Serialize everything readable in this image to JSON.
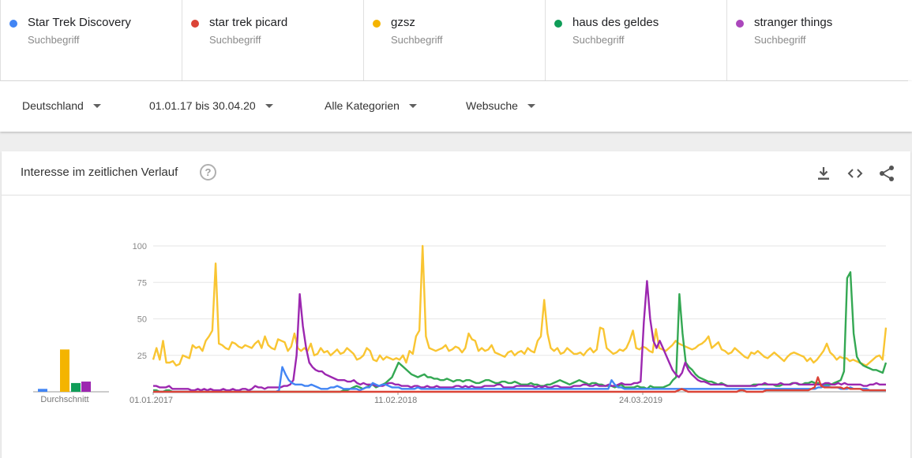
{
  "terms": [
    {
      "name": "Star Trek Discovery",
      "sub": "Suchbegriff",
      "color": "#4285f4"
    },
    {
      "name": "star trek picard",
      "sub": "Suchbegriff",
      "color": "#db4437"
    },
    {
      "name": "gzsz",
      "sub": "Suchbegriff",
      "color": "#f4b400"
    },
    {
      "name": "haus des geldes",
      "sub": "Suchbegriff",
      "color": "#0f9d58"
    },
    {
      "name": "stranger things",
      "sub": "Suchbegriff",
      "color": "#ab47bc"
    }
  ],
  "filters": {
    "region": "Deutschland",
    "time": "01.01.17 bis 30.04.20",
    "category": "Alle Kategorien",
    "search_type": "Websuche"
  },
  "card": {
    "title": "Interesse im zeitlichen Verlauf",
    "help_glyph": "?",
    "icons": [
      "download-icon",
      "embed-icon",
      "share-icon"
    ]
  },
  "chart_data": {
    "type": "line",
    "xlabels": [
      "01.01.2017",
      "11.02.2018",
      "24.03.2019"
    ],
    "yticks": [
      25,
      50,
      75,
      100
    ],
    "ylim": [
      0,
      100
    ],
    "average_label": "Durchschnitt",
    "averages": [
      {
        "term": "Star Trek Discovery",
        "value": 2,
        "color": "#4285f4"
      },
      {
        "term": "star trek picard",
        "value": 0,
        "color": "#db4437"
      },
      {
        "term": "gzsz",
        "value": 29,
        "color": "#f4b400"
      },
      {
        "term": "haus des geldes",
        "value": 6,
        "color": "#0f9d58"
      },
      {
        "term": "stranger things",
        "value": 7,
        "color": "#9c27b0"
      }
    ],
    "series": [
      {
        "name": "gzsz",
        "color": "#f9c532",
        "values": [
          22,
          30,
          22,
          35,
          20,
          20,
          21,
          18,
          19,
          25,
          24,
          23,
          32,
          30,
          31,
          28,
          35,
          38,
          42,
          88,
          33,
          32,
          30,
          29,
          34,
          33,
          31,
          30,
          32,
          31,
          30,
          33,
          35,
          30,
          38,
          32,
          30,
          29,
          36,
          35,
          34,
          28,
          31,
          40,
          30,
          28,
          30,
          28,
          33,
          25,
          26,
          30,
          27,
          28,
          25,
          27,
          29,
          26,
          27,
          30,
          28,
          26,
          22,
          23,
          25,
          30,
          28,
          22,
          21,
          25,
          22,
          24,
          23,
          22,
          23,
          22,
          25,
          20,
          28,
          26,
          38,
          42,
          100,
          38,
          30,
          29,
          28,
          29,
          30,
          32,
          28,
          29,
          31,
          30,
          27,
          30,
          40,
          36,
          35,
          28,
          30,
          28,
          29,
          32,
          27,
          26,
          25,
          24,
          27,
          28,
          25,
          27,
          28,
          26,
          30,
          28,
          27,
          35,
          38,
          63,
          40,
          30,
          28,
          30,
          26,
          27,
          30,
          28,
          26,
          26,
          27,
          25,
          28,
          30,
          27,
          29,
          44,
          43,
          30,
          28,
          26,
          27,
          29,
          28,
          30,
          35,
          42,
          30,
          29,
          31,
          30,
          28,
          27,
          43,
          30,
          29,
          28,
          30,
          32,
          35,
          33,
          32,
          31,
          30,
          29,
          30,
          32,
          33,
          35,
          38,
          30,
          32,
          34,
          29,
          28,
          26,
          27,
          30,
          28,
          26,
          24,
          23,
          27,
          26,
          28,
          26,
          24,
          23,
          25,
          27,
          25,
          23,
          21,
          24,
          26,
          27,
          26,
          25,
          24,
          21,
          23,
          20,
          22,
          25,
          28,
          33,
          27,
          25,
          22,
          24,
          23,
          23,
          21,
          22,
          21,
          20,
          19,
          18,
          20,
          22,
          24,
          25,
          22,
          44
        ]
      },
      {
        "name": "haus des geldes",
        "color": "#34a853",
        "values": [
          1,
          1,
          0,
          0,
          1,
          1,
          0,
          0,
          0,
          0,
          0,
          0,
          0,
          0,
          0,
          0,
          0,
          0,
          0,
          0,
          0,
          0,
          0,
          0,
          0,
          0,
          0,
          0,
          0,
          0,
          0,
          0,
          0,
          0,
          0,
          0,
          0,
          0,
          0,
          0,
          0,
          0,
          0,
          0,
          0,
          0,
          0,
          0,
          0,
          0,
          0,
          0,
          0,
          0,
          0,
          0,
          0,
          0,
          0,
          1,
          1,
          2,
          3,
          4,
          3,
          2,
          3,
          4,
          5,
          3,
          4,
          5,
          6,
          8,
          10,
          15,
          20,
          18,
          16,
          14,
          12,
          11,
          10,
          11,
          12,
          10,
          10,
          9,
          9,
          8,
          8,
          9,
          8,
          7,
          8,
          8,
          7,
          8,
          8,
          7,
          6,
          6,
          7,
          8,
          8,
          7,
          6,
          6,
          7,
          7,
          6,
          6,
          7,
          6,
          5,
          5,
          5,
          6,
          5,
          5,
          4,
          4,
          5,
          5,
          6,
          7,
          8,
          7,
          6,
          5,
          6,
          7,
          8,
          7,
          6,
          5,
          6,
          6,
          5,
          5,
          4,
          4,
          4,
          3,
          4,
          5,
          3,
          3,
          3,
          3,
          4,
          3,
          3,
          2,
          4,
          3,
          3,
          3,
          3,
          4,
          5,
          8,
          10,
          67,
          40,
          20,
          17,
          15,
          12,
          10,
          9,
          8,
          7,
          7,
          6,
          5,
          6,
          5,
          4,
          4,
          4,
          4,
          4,
          4,
          4,
          4,
          5,
          5,
          5,
          5,
          5,
          5,
          5,
          4,
          4,
          5,
          5,
          5,
          6,
          6,
          5,
          5,
          6,
          6,
          7,
          6,
          6,
          5,
          5,
          5,
          5,
          6,
          7,
          8,
          14,
          78,
          82,
          40,
          24,
          20,
          18,
          17,
          16,
          15,
          15,
          14,
          13,
          20
        ]
      },
      {
        "name": "stranger things",
        "color": "#9c27b0",
        "values": [
          4,
          4,
          3,
          3,
          3,
          4,
          2,
          2,
          2,
          2,
          2,
          2,
          1,
          1,
          2,
          1,
          2,
          1,
          2,
          1,
          1,
          1,
          2,
          1,
          1,
          2,
          1,
          1,
          2,
          2,
          1,
          2,
          4,
          3,
          3,
          2,
          3,
          3,
          3,
          3,
          3,
          4,
          4,
          5,
          8,
          25,
          67,
          45,
          30,
          20,
          17,
          15,
          14,
          14,
          12,
          11,
          10,
          9,
          8,
          8,
          8,
          7,
          7,
          8,
          6,
          5,
          6,
          5,
          5,
          5,
          4,
          4,
          4,
          5,
          6,
          6,
          5,
          5,
          4,
          4,
          4,
          3,
          4,
          4,
          3,
          3,
          4,
          3,
          3,
          4,
          3,
          3,
          3,
          3,
          3,
          4,
          4,
          3,
          4,
          3,
          4,
          3,
          3,
          3,
          4,
          4,
          4,
          4,
          5,
          5,
          3,
          3,
          3,
          3,
          4,
          4,
          4,
          4,
          4,
          4,
          3,
          4,
          3,
          4,
          3,
          3,
          4,
          4,
          3,
          3,
          3,
          3,
          4,
          4,
          4,
          5,
          5,
          4,
          4,
          5,
          4,
          4,
          4,
          5,
          4,
          4,
          5,
          6,
          5,
          5,
          5,
          6,
          6,
          7,
          48,
          76,
          50,
          35,
          30,
          35,
          30,
          25,
          20,
          15,
          12,
          10,
          13,
          20,
          15,
          12,
          10,
          8,
          7,
          7,
          6,
          5,
          5,
          5,
          5,
          5,
          4,
          4,
          4,
          4,
          4,
          4,
          4,
          4,
          4,
          4,
          5,
          5,
          6,
          5,
          5,
          5,
          5,
          6,
          5,
          5,
          5,
          6,
          6,
          5,
          5,
          5,
          5,
          5,
          5,
          5,
          5,
          6,
          6,
          5,
          5,
          6,
          5,
          6,
          5,
          5,
          5,
          5,
          5,
          4,
          4,
          5,
          5,
          6,
          5,
          5,
          5
        ]
      },
      {
        "name": "Star Trek Discovery",
        "color": "#4285f4",
        "values": [
          0,
          0,
          0,
          0,
          0,
          0,
          0,
          0,
          0,
          0,
          0,
          0,
          0,
          0,
          0,
          0,
          0,
          0,
          0,
          0,
          0,
          0,
          0,
          0,
          0,
          0,
          0,
          0,
          0,
          0,
          0,
          0,
          0,
          0,
          0,
          0,
          0,
          0,
          0,
          1,
          17,
          12,
          8,
          6,
          5,
          5,
          5,
          4,
          4,
          5,
          4,
          3,
          2,
          2,
          2,
          3,
          3,
          4,
          3,
          2,
          2,
          2,
          2,
          2,
          1,
          2,
          3,
          3,
          6,
          5,
          4,
          5,
          5,
          4,
          3,
          3,
          3,
          2,
          2,
          2,
          2,
          2,
          3,
          2,
          2,
          2,
          2,
          2,
          2,
          2,
          2,
          2,
          2,
          2,
          2,
          2,
          2,
          2,
          2,
          2,
          2,
          2,
          2,
          2,
          2,
          2,
          2,
          2,
          2,
          2,
          2,
          2,
          2,
          2,
          2,
          2,
          2,
          2,
          2,
          2,
          2,
          2,
          2,
          2,
          2,
          2,
          2,
          2,
          2,
          2,
          2,
          2,
          2,
          2,
          2,
          2,
          2,
          2,
          2,
          2,
          2,
          2,
          8,
          5,
          3,
          3,
          2,
          2,
          2,
          2,
          2,
          2,
          2,
          2,
          2,
          2,
          2,
          2,
          2,
          2,
          2,
          2,
          2,
          2,
          2,
          2,
          2,
          2,
          2,
          2,
          2,
          2,
          2,
          2,
          2,
          2,
          2,
          2,
          2,
          2,
          2,
          2,
          2,
          2,
          2,
          2,
          2,
          2,
          2,
          2,
          2,
          2,
          2,
          2,
          2,
          2,
          2,
          2,
          2,
          2,
          2,
          2,
          2,
          2,
          2,
          2,
          3,
          3,
          4,
          4,
          3,
          3,
          3,
          2,
          2,
          2,
          3,
          2,
          2,
          2,
          2,
          2,
          1,
          1,
          1,
          1,
          1,
          1
        ]
      },
      {
        "name": "star trek picard",
        "color": "#db4437",
        "values": [
          0,
          0,
          0,
          0,
          0,
          0,
          0,
          0,
          0,
          0,
          0,
          0,
          0,
          0,
          0,
          0,
          0,
          0,
          0,
          0,
          0,
          0,
          0,
          0,
          0,
          0,
          0,
          0,
          0,
          0,
          0,
          0,
          0,
          0,
          0,
          0,
          0,
          0,
          0,
          0,
          0,
          0,
          0,
          0,
          0,
          0,
          0,
          0,
          0,
          0,
          0,
          0,
          0,
          0,
          0,
          0,
          0,
          0,
          0,
          0,
          0,
          0,
          0,
          0,
          0,
          0,
          0,
          0,
          0,
          0,
          0,
          0,
          0,
          0,
          0,
          0,
          0,
          0,
          0,
          0,
          0,
          0,
          0,
          0,
          0,
          0,
          0,
          0,
          0,
          0,
          0,
          0,
          0,
          0,
          0,
          0,
          0,
          0,
          0,
          0,
          0,
          0,
          0,
          0,
          0,
          0,
          0,
          0,
          0,
          0,
          0,
          0,
          0,
          0,
          0,
          0,
          0,
          0,
          0,
          0,
          0,
          0,
          0,
          0,
          0,
          0,
          0,
          0,
          0,
          0,
          0,
          0,
          0,
          0,
          0,
          0,
          0,
          0,
          0,
          0,
          0,
          0,
          0,
          0,
          0,
          0,
          0,
          0,
          0,
          0,
          0,
          0,
          0,
          0,
          0,
          0,
          0,
          0,
          0,
          0,
          0,
          0,
          1,
          2,
          1,
          0,
          0,
          0,
          0,
          0,
          0,
          0,
          0,
          0,
          0,
          0,
          0,
          0,
          0,
          0,
          0,
          1,
          1,
          0,
          0,
          0,
          0,
          0,
          0,
          1,
          1,
          1,
          1,
          1,
          1,
          1,
          1,
          1,
          1,
          1,
          1,
          1,
          1,
          2,
          3,
          10,
          4,
          3,
          3,
          3,
          3,
          3,
          3,
          2,
          3,
          2,
          2,
          2,
          2,
          1,
          1,
          1,
          1,
          1,
          1,
          1,
          1
        ]
      }
    ]
  }
}
